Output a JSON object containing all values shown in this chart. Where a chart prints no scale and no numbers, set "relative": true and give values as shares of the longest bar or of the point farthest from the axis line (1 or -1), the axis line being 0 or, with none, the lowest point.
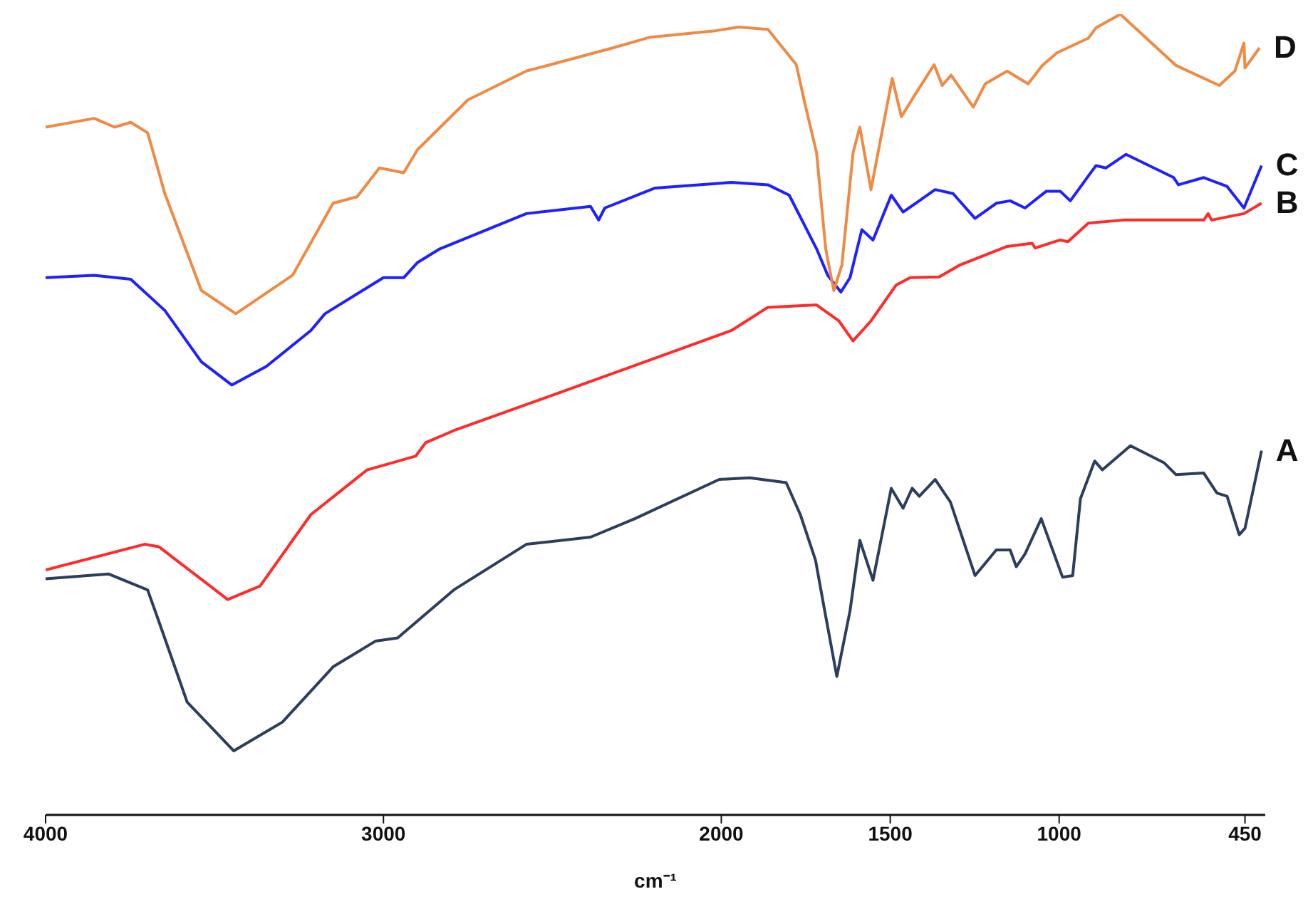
{
  "chart_data": {
    "type": "line",
    "xlabel": "cm⁻¹",
    "relative": true,
    "xlim": [
      4000,
      390
    ],
    "xticks": [
      4000,
      3000,
      2000,
      1500,
      1000,
      450
    ],
    "series": [
      {
        "name": "A",
        "color": "#2c3e5c",
        "x": [
          4000,
          3814,
          3698,
          3665,
          3581,
          3443,
          3299,
          3149,
          3024,
          2958,
          2792,
          2577,
          2387,
          2256,
          2006,
          1916,
          1808,
          1766,
          1721,
          1694,
          1658,
          1619,
          1590,
          1551,
          1497,
          1462,
          1435,
          1414,
          1367,
          1322,
          1249,
          1186,
          1145,
          1127,
          1101,
          1053,
          990,
          960,
          937,
          895,
          872,
          789,
          690,
          654,
          572,
          533,
          503,
          467,
          450,
          401
        ],
        "values": [
          0.295,
          0.301,
          0.281,
          0.242,
          0.141,
          0.08,
          0.116,
          0.185,
          0.217,
          0.221,
          0.281,
          0.338,
          0.347,
          0.37,
          0.419,
          0.421,
          0.415,
          0.375,
          0.318,
          0.255,
          0.173,
          0.255,
          0.343,
          0.293,
          0.408,
          0.383,
          0.408,
          0.398,
          0.419,
          0.391,
          0.299,
          0.331,
          0.331,
          0.31,
          0.326,
          0.37,
          0.297,
          0.299,
          0.395,
          0.442,
          0.431,
          0.461,
          0.44,
          0.425,
          0.427,
          0.402,
          0.398,
          0.35,
          0.358,
          0.455
        ]
      },
      {
        "name": "B",
        "color": "#ff2a2a",
        "x": [
          4000,
          3707,
          3665,
          3461,
          3365,
          3215,
          3048,
          2905,
          2875,
          2792,
          2363,
          1970,
          1862,
          1718,
          1652,
          1610,
          1557,
          1482,
          1441,
          1355,
          1293,
          1154,
          1080,
          1071,
          997,
          974,
          914,
          809,
          690,
          572,
          559,
          549,
          453,
          401
        ],
        "values": [
          0.306,
          0.338,
          0.335,
          0.269,
          0.286,
          0.375,
          0.431,
          0.448,
          0.465,
          0.48,
          0.545,
          0.605,
          0.634,
          0.637,
          0.617,
          0.592,
          0.617,
          0.662,
          0.671,
          0.672,
          0.687,
          0.71,
          0.714,
          0.708,
          0.718,
          0.716,
          0.739,
          0.743,
          0.743,
          0.743,
          0.751,
          0.743,
          0.751,
          0.764
        ]
      },
      {
        "name": "C",
        "color": "#1f1fff",
        "x": [
          4000,
          3856,
          3748,
          3647,
          3539,
          3449,
          3347,
          3215,
          3173,
          3000,
          2940,
          2899,
          2833,
          2577,
          2387,
          2363,
          2345,
          2196,
          1970,
          1862,
          1799,
          1718,
          1685,
          1646,
          1619,
          1584,
          1551,
          1497,
          1462,
          1414,
          1367,
          1314,
          1249,
          1186,
          1145,
          1101,
          1038,
          997,
          967,
          891,
          862,
          802,
          661,
          647,
          572,
          503,
          453,
          401
        ],
        "values": [
          0.671,
          0.674,
          0.669,
          0.63,
          0.566,
          0.537,
          0.56,
          0.605,
          0.626,
          0.671,
          0.671,
          0.69,
          0.707,
          0.751,
          0.76,
          0.743,
          0.758,
          0.783,
          0.79,
          0.787,
          0.774,
          0.707,
          0.674,
          0.653,
          0.671,
          0.731,
          0.718,
          0.774,
          0.753,
          0.767,
          0.781,
          0.776,
          0.745,
          0.764,
          0.767,
          0.758,
          0.779,
          0.779,
          0.767,
          0.811,
          0.808,
          0.825,
          0.796,
          0.787,
          0.796,
          0.785,
          0.758,
          0.811
        ]
      },
      {
        "name": "D",
        "color": "#ef8a45",
        "x": [
          4000,
          3856,
          3796,
          3748,
          3698,
          3647,
          3539,
          3437,
          3269,
          3149,
          3078,
          3012,
          2940,
          2899,
          2750,
          2577,
          2321,
          2214,
          2024,
          1949,
          1862,
          1778,
          1754,
          1718,
          1691,
          1667,
          1643,
          1610,
          1590,
          1557,
          1494,
          1467,
          1420,
          1370,
          1346,
          1320,
          1254,
          1219,
          1154,
          1092,
          1050,
          1006,
          914,
          891,
          819,
          654,
          526,
          480,
          453,
          450,
          407
        ],
        "values": [
          0.859,
          0.87,
          0.859,
          0.865,
          0.852,
          0.776,
          0.655,
          0.626,
          0.674,
          0.764,
          0.772,
          0.808,
          0.802,
          0.831,
          0.893,
          0.929,
          0.958,
          0.971,
          0.979,
          0.984,
          0.981,
          0.937,
          0.891,
          0.827,
          0.707,
          0.655,
          0.687,
          0.827,
          0.859,
          0.781,
          0.92,
          0.872,
          0.904,
          0.937,
          0.911,
          0.924,
          0.884,
          0.913,
          0.929,
          0.913,
          0.936,
          0.952,
          0.97,
          0.983,
          1.0,
          0.936,
          0.911,
          0.929,
          0.964,
          0.933,
          0.958
        ]
      }
    ]
  }
}
